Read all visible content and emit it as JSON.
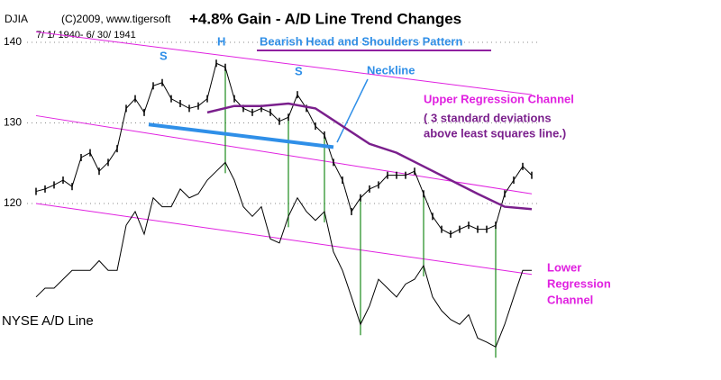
{
  "chart_data": {
    "type": "line",
    "symbol": "DJIA",
    "credit": "(C)2009, www.tigersoft",
    "title": "+4.8% Gain - A/D Line Trend Changes",
    "date_range": "7/ 1/ 1940- 6/ 30/ 1941",
    "ylim": [
      98.1,
      145.25
    ],
    "yticks": [
      120,
      130,
      140
    ],
    "grid": true,
    "series": [
      {
        "name": "DJIA",
        "color": "#000000",
        "values": [
          121.5,
          121.8,
          122.3,
          122.9,
          122.1,
          125.7,
          126.3,
          124.0,
          125.1,
          126.8,
          131.8,
          133.0,
          131.3,
          134.6,
          135.0,
          133.0,
          132.4,
          131.8,
          132.1,
          133.0,
          137.4,
          136.9,
          133.0,
          131.8,
          131.3,
          131.8,
          131.3,
          130.2,
          130.7,
          133.5,
          131.8,
          129.6,
          128.5,
          125.1,
          122.9,
          119.0,
          120.7,
          121.8,
          122.3,
          123.5,
          123.5,
          123.5,
          124.0,
          121.2,
          118.4,
          116.8,
          116.2,
          116.8,
          117.3,
          116.8,
          116.8,
          117.3,
          121.2,
          122.9,
          124.6,
          123.5
        ]
      },
      {
        "name": "NYSE A/D Line",
        "color": "#000000",
        "values": [
          108.4,
          109.5,
          109.5,
          110.6,
          111.7,
          111.7,
          111.7,
          112.9,
          111.7,
          111.7,
          117.3,
          119.0,
          116.2,
          120.7,
          119.6,
          119.6,
          121.8,
          120.7,
          121.2,
          122.9,
          124.0,
          125.1,
          122.9,
          119.6,
          118.4,
          119.6,
          115.6,
          115.1,
          118.4,
          120.7,
          119.0,
          117.9,
          119.0,
          114.0,
          111.7,
          108.4,
          105.0,
          107.3,
          110.6,
          109.5,
          108.4,
          110.0,
          110.6,
          112.3,
          108.4,
          106.7,
          105.6,
          105.0,
          106.2,
          103.3,
          102.8,
          102.2,
          105.0,
          108.4,
          111.7,
          111.7
        ]
      }
    ],
    "moving_average": {
      "color": "#7a1f8c",
      "x": [
        19,
        22,
        25,
        28,
        31,
        34,
        37,
        40,
        43,
        46,
        49,
        52,
        55
      ],
      "values": [
        131.3,
        132.1,
        132.1,
        132.4,
        131.8,
        129.6,
        127.4,
        126.3,
        124.6,
        122.9,
        121.2,
        119.6,
        119.3
      ]
    },
    "channel_lines": {
      "color": "#e020e0",
      "x": [
        0,
        55
      ],
      "lines": [
        [
          141.3,
          133.5
        ],
        [
          130.9,
          121.2
        ],
        [
          120.0,
          111.2
        ]
      ]
    },
    "neckline": {
      "color": "#2f8fe8",
      "x": [
        12.5,
        33
      ],
      "values": [
        129.8,
        127.0
      ]
    },
    "signals": {
      "color": "#1a8a1a",
      "x": [
        21,
        28,
        32,
        36,
        43,
        51
      ]
    },
    "annotations": {
      "head": "H",
      "left_shoulder": "S",
      "right_shoulder": "S",
      "pattern": "Bearish Head and Shoulders Pattern",
      "neckline_label": "Neckline",
      "upper_channel": [
        "Upper Regression Channel",
        "( 3 standard deviations",
        "above least squares line.)"
      ],
      "lower_channel": [
        "Lower",
        "Regression",
        "Channel"
      ],
      "ad_label": "NYSE A/D Line"
    }
  }
}
